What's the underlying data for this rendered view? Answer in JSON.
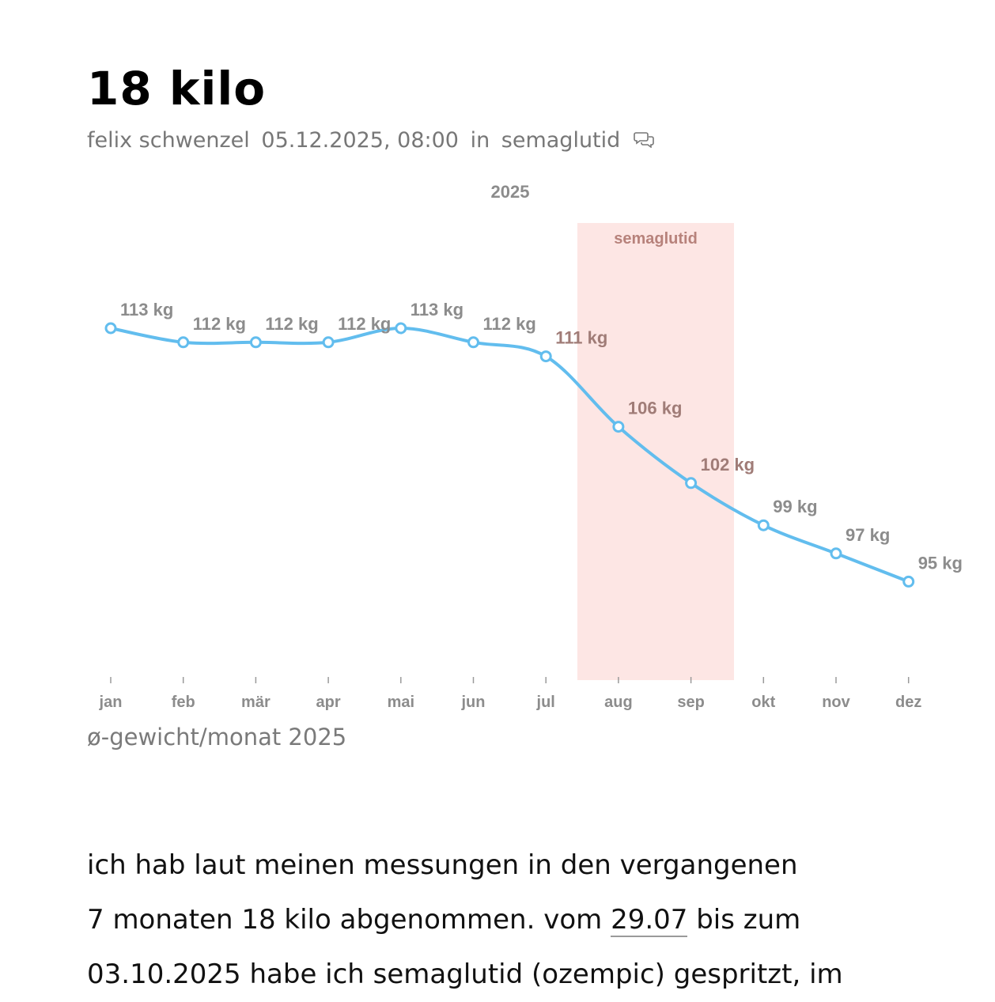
{
  "post": {
    "title": "18 kilo",
    "author": "felix schwenzel",
    "datetime": "05.12.2025, 08:00",
    "in_label": "in",
    "category": "semaglutid",
    "comment_icon": "comment-bubbles-icon"
  },
  "chart_data": {
    "type": "line",
    "title": "2025",
    "categories": [
      "jan",
      "feb",
      "mär",
      "apr",
      "mai",
      "jun",
      "jul",
      "aug",
      "sep",
      "okt",
      "nov",
      "dez"
    ],
    "values": [
      113,
      112,
      112,
      112,
      113,
      112,
      111,
      106,
      102,
      99,
      97,
      95
    ],
    "data_labels": [
      "113 kg",
      "112 kg",
      "112 kg",
      "112 kg",
      "113 kg",
      "112 kg",
      "111 kg",
      "106 kg",
      "102 kg",
      "99 kg",
      "97 kg",
      "95 kg"
    ],
    "unit": "kg",
    "ylim": [
      90,
      120
    ],
    "highlight": {
      "label": "semaglutid",
      "from": "29.07",
      "to": "03.10"
    },
    "series_color": "#62bdee",
    "highlight_color": "#fde6e4",
    "highlight_label_color": "#b7827b"
  },
  "caption": "ø-gewicht/monat 2025",
  "body": {
    "line1": "ich hab laut meinen messungen in den vergangenen",
    "line2_before": "7 monaten 18 kilo abgenommen. vom",
    "line2_link": "29.07",
    "line2_after": "bis zum",
    "line3": "03.10.2025 habe ich semaglutid (ozempic) gespritzt, im"
  }
}
